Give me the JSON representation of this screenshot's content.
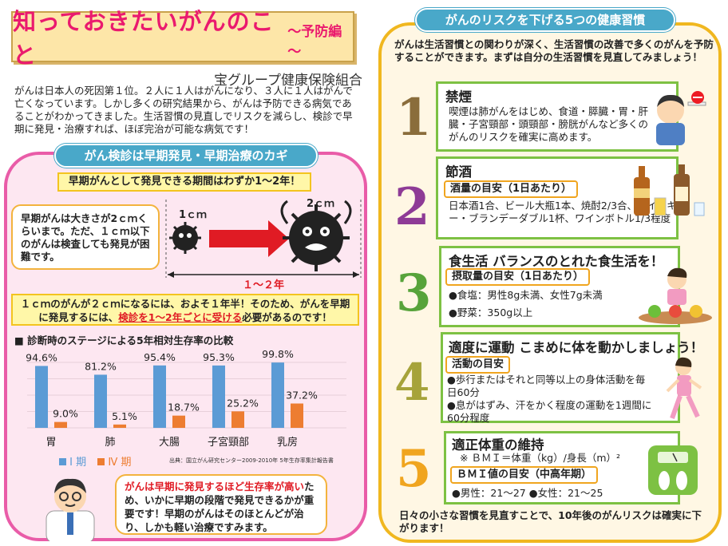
{
  "title": {
    "main": "知っておきたいがんのこと",
    "sub": "～予防編～"
  },
  "org": "宝グループ健康保険組合",
  "intro": "がんは日本人の死因第１位。２人に１人はがんになり、３人に１人はがんで亡くなっています。しかし多くの研究結果から、がんは予防できる病気であることがわかってきました。生活習慣の見直しでリスクを減らし、検診で早期に発見・治療すれば、ほぼ完治が可能な病気です！",
  "left": {
    "heading": "がん検診は早期発見・早期治療のカギ",
    "alert": "早期がんとして発見できる期間はわずか1～2年！",
    "size_bubble": "早期がんは大きさが2ｃｍくらいまで。ただ、１ｃｍ以下のがんは検査しても発見が困難です。",
    "label_1cm": "1ｃｍ",
    "label_2cm": "2ｃｍ",
    "period": "１～２年",
    "note_part1": "１ｃｍのがんが２ｃｍになるには、およそ１年半！そのため、がんを早期に発見するには、",
    "note_red": "検診を1～2年ごとに受ける",
    "note_part2": "必要があるのです！",
    "chart_title": "■ 診断時のステージによる5年相対生存率の比較",
    "legend_stage1": "Ⅰ 期",
    "legend_stage4": "Ⅳ 期",
    "source": "出典：国立がん研究センター2009-2010年 5年生存率集計報告書",
    "doctor_red1": "がんは早期に発見するほど生存率が高い",
    "doctor_rest": "ため、いかに早期の段階で発見できるかが重要です！早期のがんはそのほとんどが治り、しかも軽い治療ですみます。"
  },
  "chart_data": {
    "type": "bar",
    "title": "診断時のステージによる5年相対生存率の比較",
    "categories": [
      "胃",
      "肺",
      "大腸",
      "子宮頸部",
      "乳房"
    ],
    "series": [
      {
        "name": "Ⅰ 期",
        "values": [
          94.6,
          81.2,
          95.4,
          95.3,
          99.8
        ],
        "color": "#5b9bd5"
      },
      {
        "name": "Ⅳ 期",
        "values": [
          9.0,
          5.1,
          18.7,
          25.2,
          37.2
        ],
        "color": "#ed7d31"
      }
    ],
    "value_labels_1": [
      "94.6%",
      "81.2%",
      "95.4%",
      "95.3%",
      "99.8%"
    ],
    "value_labels_4": [
      "9.0%",
      "5.1%",
      "18.7%",
      "25.2%",
      "37.2%"
    ],
    "ylim": [
      0,
      100
    ],
    "grid": true
  },
  "right": {
    "heading": "がんのリスクを下げる5つの健康習慣",
    "intro": "がんは生活習慣との関わりが深く、生活習慣の改善で多くのがんを予防することができます。まずは自分の生活習慣を見直してみましょう！",
    "habits": [
      {
        "num": "1",
        "title": "禁煙",
        "text": "喫煙は肺がんをはじめ、食道・膵臓・胃・肝臓・子宮頸部・頭頸部・膀胱がんなど多くのがんのリスクを確実に高めます。"
      },
      {
        "num": "2",
        "title": "節酒",
        "pill": "酒量の目安（1日あたり）",
        "text": "日本酒1合、ビール大瓶1本、焼酎2/3合、ウイスキー・ブランデーダブル1杯、ワインボトル1/3程度"
      },
      {
        "num": "3",
        "title": "食生活 バランスのとれた食生活を！",
        "pill": "摂取量の目安（1日あたり）",
        "line1": "●食塩：男性8g未満、女性7g未満",
        "line2": "●野菜：350g以上"
      },
      {
        "num": "4",
        "title": "適度に運動 こまめに体を動かしましょう！",
        "pill": "活動の目安",
        "line1": "●歩行またはそれと同等以上の身体活動を毎日60分",
        "line2": "●息がはずみ、汗をかく程度の運動を1週間に60分程度"
      },
      {
        "num": "5",
        "title": "適正体重の維持",
        "formula": "※ ＢＭＩ＝体重（kg）/身長（m）²",
        "pill": "ＢＭＩ値の目安（中高年期）",
        "line1": "●男性：21～27 ●女性：21～25"
      }
    ],
    "footer": "日々の小さな習慣を見直すことで、10年後のがんリスクは確実に下がります！"
  },
  "colors": {
    "pink": "#ea1a6e",
    "teal": "#49a8c9",
    "green": "#7dc143",
    "orange": "#f0a51f",
    "stage1": "#5b9bd5",
    "stage4": "#ed7d31"
  }
}
